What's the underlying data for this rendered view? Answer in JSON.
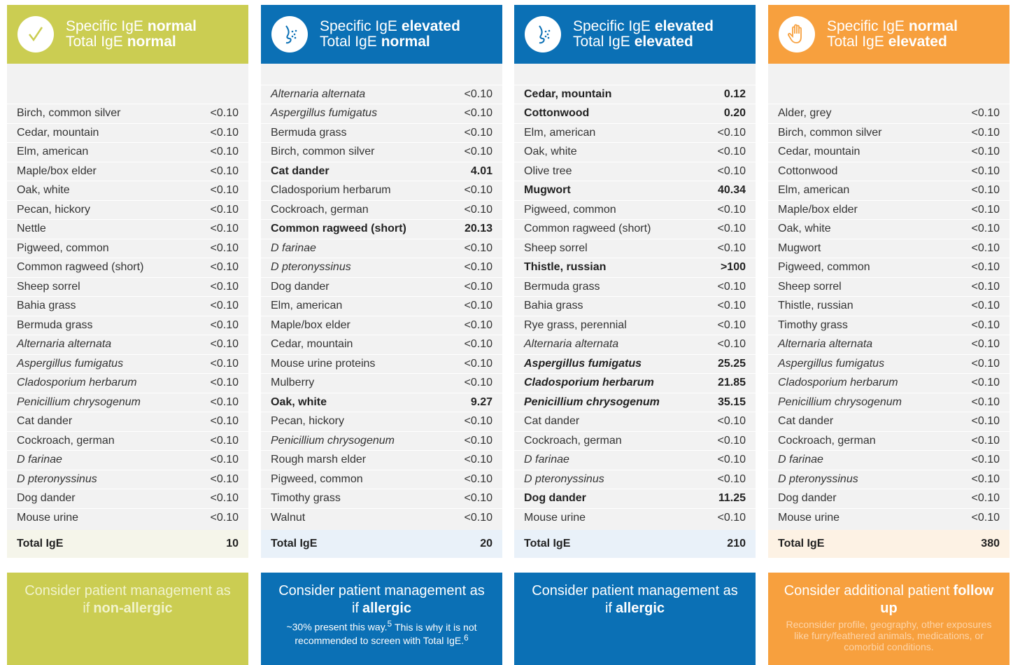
{
  "columns": [
    {
      "header": [
        {
          "label": "Specific IgE",
          "value": "normal"
        },
        {
          "label": "Total IgE",
          "value": "normal"
        }
      ],
      "color": "#cbcd52",
      "total_color": "#f5f5ea",
      "rows": [
        {
          "name": "Birch, common silver",
          "value": "<0.10"
        },
        {
          "name": "Cedar, mountain",
          "value": "<0.10"
        },
        {
          "name": "Elm, american",
          "value": "<0.10"
        },
        {
          "name": "Maple/box elder",
          "value": "<0.10"
        },
        {
          "name": "Oak, white",
          "value": "<0.10"
        },
        {
          "name": "Pecan, hickory",
          "value": "<0.10"
        },
        {
          "name": "Nettle",
          "value": "<0.10"
        },
        {
          "name": "Pigweed, common",
          "value": "<0.10"
        },
        {
          "name": "Common ragweed (short)",
          "value": "<0.10"
        },
        {
          "name": "Sheep sorrel",
          "value": "<0.10"
        },
        {
          "name": "Bahia grass",
          "value": "<0.10"
        },
        {
          "name": "Bermuda grass",
          "value": "<0.10"
        },
        {
          "name": "Alternaria alternata",
          "value": "<0.10",
          "italic": true
        },
        {
          "name": "Aspergillus fumigatus",
          "value": "<0.10",
          "italic": true
        },
        {
          "name": "Cladosporium herbarum",
          "value": "<0.10",
          "italic": true
        },
        {
          "name": "Penicillium chrysogenum",
          "value": "<0.10",
          "italic": true
        },
        {
          "name": "Cat dander",
          "value": "<0.10"
        },
        {
          "name": "Cockroach, german",
          "value": "<0.10"
        },
        {
          "name": "D farinae",
          "value": "<0.10",
          "italic": true
        },
        {
          "name": "D pteronyssinus",
          "value": "<0.10",
          "italic": true
        },
        {
          "name": "Dog dander",
          "value": "<0.10"
        },
        {
          "name": "Mouse urine",
          "value": "<0.10"
        }
      ],
      "total": {
        "label": "Total IgE",
        "value": 10
      },
      "footer": {
        "text": "Consider patient management as if",
        "emphasis": "non-allergic"
      }
    },
    {
      "header": [
        {
          "label": "Specific IgE",
          "value": "elevated"
        },
        {
          "label": "Total IgE",
          "value": "normal"
        }
      ],
      "color": "#0b70b5",
      "total_color": "#e9f1f9",
      "rows": [
        {
          "name": "Alternaria alternata",
          "value": "<0.10",
          "italic": true
        },
        {
          "name": "Aspergillus fumigatus",
          "value": "<0.10",
          "italic": true
        },
        {
          "name": "Bermuda grass",
          "value": "<0.10"
        },
        {
          "name": "Birch, common silver",
          "value": "<0.10"
        },
        {
          "name": "Cat dander",
          "value": "4.01",
          "bold": true
        },
        {
          "name": "Cladosporium herbarum",
          "value": "<0.10"
        },
        {
          "name": "Cockroach, german",
          "value": "<0.10"
        },
        {
          "name": "Common ragweed (short)",
          "value": "20.13",
          "bold": true
        },
        {
          "name": "D farinae",
          "value": "<0.10",
          "italic": true
        },
        {
          "name": "D pteronyssinus",
          "value": "<0.10",
          "italic": true
        },
        {
          "name": "Dog dander",
          "value": "<0.10"
        },
        {
          "name": "Elm, american",
          "value": "<0.10"
        },
        {
          "name": "Maple/box elder",
          "value": "<0.10"
        },
        {
          "name": "Cedar, mountain",
          "value": "<0.10"
        },
        {
          "name": "Mouse urine proteins",
          "value": "<0.10"
        },
        {
          "name": "Mulberry",
          "value": "<0.10"
        },
        {
          "name": "Oak, white",
          "value": "9.27",
          "bold": true
        },
        {
          "name": "Pecan, hickory",
          "value": "<0.10"
        },
        {
          "name": "Penicillium chrysogenum",
          "value": "<0.10",
          "italic": true
        },
        {
          "name": "Rough marsh elder",
          "value": "<0.10"
        },
        {
          "name": "Pigweed, common",
          "value": "<0.10"
        },
        {
          "name": "Timothy grass",
          "value": "<0.10"
        },
        {
          "name": "Walnut",
          "value": "<0.10"
        }
      ],
      "total": {
        "label": "Total IgE",
        "value": 20
      },
      "footer": {
        "text": "Consider patient management as if",
        "emphasis": "allergic",
        "note": [
          {
            "text": "~30% present this way."
          },
          {
            "sup": "5"
          },
          {
            "text": "This is why it is not recommended to screen with Total IgE."
          },
          {
            "sup": "6"
          }
        ]
      }
    },
    {
      "header": [
        {
          "label": "Specific IgE",
          "value": "elevated"
        },
        {
          "label": "Total IgE",
          "value": "elevated"
        }
      ],
      "color": "#0b70b5",
      "total_color": "#e9f1f9",
      "rows": [
        {
          "name": "Cedar, mountain",
          "value": "0.12",
          "bold": true
        },
        {
          "name": "Cottonwood",
          "value": "0.20",
          "bold": true
        },
        {
          "name": "Elm, american",
          "value": "<0.10"
        },
        {
          "name": "Oak, white",
          "value": "<0.10"
        },
        {
          "name": "Olive tree",
          "value": "<0.10"
        },
        {
          "name": "Mugwort",
          "value": "40.34",
          "bold": true
        },
        {
          "name": "Pigweed, common",
          "value": "<0.10"
        },
        {
          "name": "Common ragweed (short)",
          "value": "<0.10"
        },
        {
          "name": "Sheep sorrel",
          "value": "<0.10"
        },
        {
          "name": "Thistle, russian",
          "value": ">100",
          "bold": true
        },
        {
          "name": "Bermuda grass",
          "value": "<0.10"
        },
        {
          "name": "Bahia grass",
          "value": "<0.10"
        },
        {
          "name": "Rye grass, perennial",
          "value": "<0.10"
        },
        {
          "name": "Alternaria alternata",
          "value": "<0.10",
          "italic": true
        },
        {
          "name": "Aspergillus fumigatus",
          "value": "25.25",
          "bold": true,
          "italic": true
        },
        {
          "name": "Cladosporium herbarum",
          "value": "21.85",
          "bold": true,
          "italic": true
        },
        {
          "name": "Penicillium chrysogenum",
          "value": "35.15",
          "bold": true,
          "italic": true
        },
        {
          "name": "Cat dander",
          "value": "<0.10"
        },
        {
          "name": "Cockroach, german",
          "value": "<0.10"
        },
        {
          "name": "D farinae",
          "value": "<0.10",
          "italic": true
        },
        {
          "name": "D pteronyssinus",
          "value": "<0.10",
          "italic": true
        },
        {
          "name": "Dog dander",
          "value": "11.25",
          "bold": true
        },
        {
          "name": "Mouse urine",
          "value": "<0.10"
        }
      ],
      "total": {
        "label": "Total IgE",
        "value": 210
      },
      "footer": {
        "text": "Consider patient management as if",
        "emphasis": "allergic"
      }
    },
    {
      "header": [
        {
          "label": "Specific IgE",
          "value": "normal"
        },
        {
          "label": "Total IgE",
          "value": "elevated"
        }
      ],
      "color": "#f7a03e",
      "total_color": "#fdf2e4",
      "rows": [
        {
          "name": "Alder, grey",
          "value": "<0.10"
        },
        {
          "name": "Birch, common silver",
          "value": "<0.10"
        },
        {
          "name": "Cedar, mountain",
          "value": "<0.10"
        },
        {
          "name": "Cottonwood",
          "value": "<0.10"
        },
        {
          "name": "Elm, american",
          "value": "<0.10"
        },
        {
          "name": "Maple/box elder",
          "value": "<0.10"
        },
        {
          "name": "Oak, white",
          "value": "<0.10"
        },
        {
          "name": "Mugwort",
          "value": "<0.10"
        },
        {
          "name": "Pigweed, common",
          "value": "<0.10"
        },
        {
          "name": "Sheep sorrel",
          "value": "<0.10"
        },
        {
          "name": "Thistle, russian",
          "value": "<0.10"
        },
        {
          "name": "Timothy grass",
          "value": "<0.10"
        },
        {
          "name": "Alternaria alternata",
          "value": "<0.10",
          "italic": true
        },
        {
          "name": "Aspergillus fumigatus",
          "value": "<0.10",
          "italic": true
        },
        {
          "name": "Cladosporium herbarum",
          "value": "<0.10",
          "italic": true
        },
        {
          "name": "Penicillium chrysogenum",
          "value": "<0.10",
          "italic": true
        },
        {
          "name": "Cat dander",
          "value": "<0.10"
        },
        {
          "name": "Cockroach, german",
          "value": "<0.10"
        },
        {
          "name": "D farinae",
          "value": "<0.10",
          "italic": true
        },
        {
          "name": "D pteronyssinus",
          "value": "<0.10",
          "italic": true
        },
        {
          "name": "Dog dander",
          "value": "<0.10"
        },
        {
          "name": "Mouse urine",
          "value": "<0.10"
        }
      ],
      "total": {
        "label": "Total IgE",
        "value": 380
      },
      "footer": {
        "text": "Consider additional patient",
        "emphasis": "follow up",
        "note": [
          {
            "text": "Reconsider profile, geography, other exposures like furry/feathered animals, medications, or comorbid conditions."
          }
        ]
      }
    }
  ]
}
